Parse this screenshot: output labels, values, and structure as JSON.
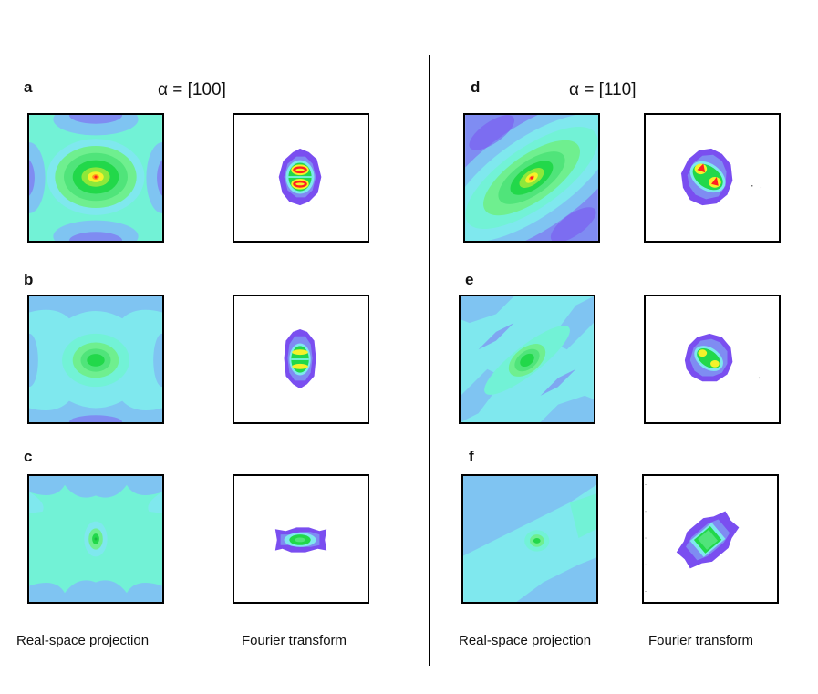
{
  "left": {
    "alpha_label": "α = [100]",
    "rows": [
      {
        "label": "a"
      },
      {
        "label": "b"
      },
      {
        "label": "c"
      }
    ],
    "footer_real": "Real-space projection",
    "footer_fourier": "Fourier transform"
  },
  "right": {
    "alpha_label": "α = [110]",
    "rows": [
      {
        "label": "d"
      },
      {
        "label": "e"
      },
      {
        "label": "f"
      }
    ],
    "footer_real": "Real-space projection",
    "footer_fourier": "Fourier transform"
  },
  "colors": {
    "red": "#ff2020",
    "orange": "#ff9a1a",
    "yellow": "#f4f22a",
    "green": "#22d84a",
    "light_green": "#6fef8f",
    "aqua": "#72f2d6",
    "cyan": "#7fe8ee",
    "light_blue": "#7fc4f2",
    "periwinkle": "#7f8cf2",
    "purple": "#7a4ef0"
  }
}
